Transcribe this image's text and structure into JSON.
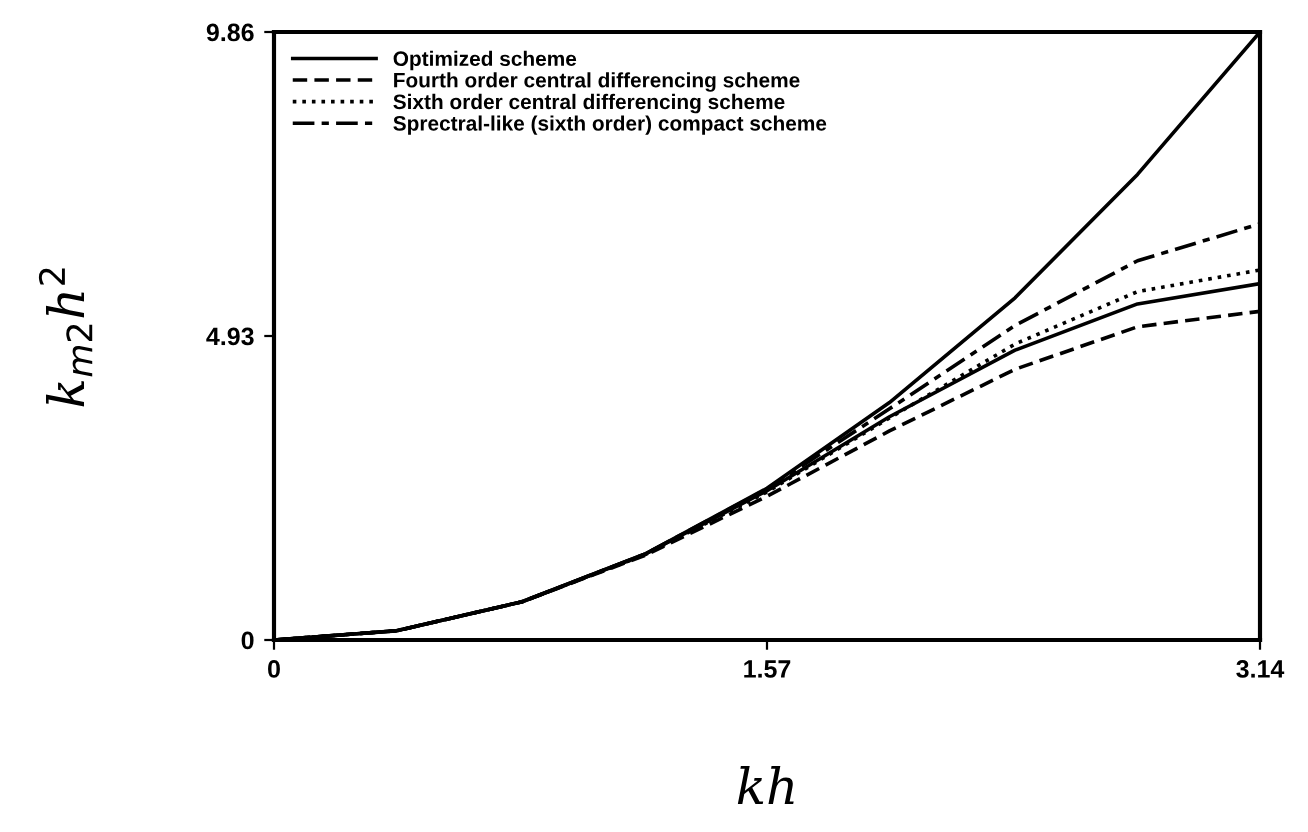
{
  "chart_data": {
    "type": "line",
    "xlabel": "kh",
    "ylabel": "k$_{m2}$h$^{2}$",
    "x": [
      0,
      0.39,
      0.79,
      1.18,
      1.57,
      1.96,
      2.36,
      2.75,
      3.14
    ],
    "series": [
      {
        "color": "#000000",
        "line_style": "solid",
        "values": [
          0,
          0.15,
          0.62,
          1.39,
          2.46,
          3.85,
          5.55,
          7.55,
          9.86
        ]
      },
      {
        "name": "Optimized scheme",
        "color": "#000000",
        "line_style": "solid",
        "values": [
          0,
          0.15,
          0.62,
          1.39,
          2.42,
          3.62,
          4.7,
          5.45,
          5.78
        ]
      },
      {
        "name": "Fourth order central differencing scheme",
        "color": "#000000",
        "line_style": "dashed",
        "values": [
          0,
          0.15,
          0.62,
          1.37,
          2.33,
          3.39,
          4.39,
          5.08,
          5.33
        ]
      },
      {
        "name": "Sixth order central differencing scheme",
        "color": "#000000",
        "line_style": "dotted",
        "values": [
          0,
          0.15,
          0.62,
          1.38,
          2.4,
          3.6,
          4.8,
          5.65,
          6.0
        ]
      },
      {
        "name": "Sprectral-like (sixth order) compact scheme",
        "color": "#000000",
        "line_style": "dashdot",
        "values": [
          0,
          0.15,
          0.62,
          1.39,
          2.45,
          3.75,
          5.1,
          6.15,
          6.75
        ]
      }
    ],
    "xlim": [
      0,
      3.14
    ],
    "ylim": [
      0,
      9.86
    ],
    "xticks": [
      0,
      1.57,
      3.14
    ],
    "yticks": [
      0,
      4.93,
      9.86
    ],
    "grid": false,
    "legend": "top left",
    "marker": "none"
  }
}
